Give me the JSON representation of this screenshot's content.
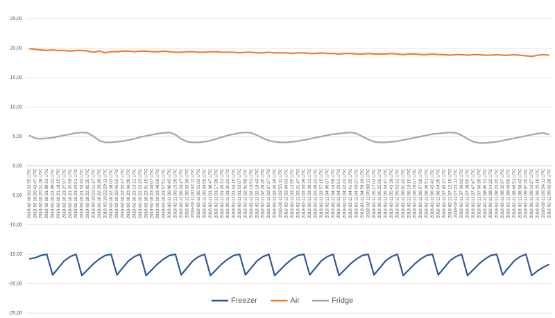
{
  "chart_data": {
    "type": "line",
    "categories": [
      "2018-02-10 20:33:55 UTC",
      "2018-02-10 20:42:47 UTC",
      "2018-02-10 20:51:39 UTC",
      "2018-02-10 21:00:31 UTC",
      "2018-02-10 21:09:23 UTC",
      "2018-02-10 21:18:15 UTC",
      "2018-02-10 21:27:07 UTC",
      "2018-02-10 21:35:59 UTC",
      "2018-02-10 21:44:51 UTC",
      "2018-02-10 21:53:43 UTC",
      "2018-02-10 22:02:35 UTC",
      "2018-02-10 22:11:27 UTC",
      "2018-02-10 22:20:19 UTC",
      "2018-02-10 22:29:11 UTC",
      "2018-02-10 22:38:03 UTC",
      "2018-02-10 22:46:55 UTC",
      "2018-02-10 22:55:47 UTC",
      "2018-02-10 23:04:39 UTC",
      "2018-02-10 23:13:31 UTC",
      "2018-02-10 23:22:23 UTC",
      "2018-02-10 23:31:15 UTC",
      "2018-02-10 23:40:07 UTC",
      "2018-02-10 23:48:59 UTC",
      "2018-02-10 23:57:51 UTC",
      "2018-02-11 00:06:43 UTC",
      "2018-02-11 00:15:35 UTC",
      "2018-02-11 00:24:27 UTC",
      "2018-02-11 00:33:19 UTC",
      "2018-02-11 00:42:11 UTC",
      "2018-02-11 00:51:03 UTC",
      "2018-02-11 00:59:55 UTC",
      "2018-02-11 01:08:47 UTC",
      "2018-02-11 01:17:39 UTC",
      "2018-02-11 01:26:31 UTC",
      "2018-02-11 01:35:23 UTC",
      "2018-02-11 01:44:15 UTC",
      "2018-02-11 01:53:07 UTC",
      "2018-02-11 02:01:59 UTC",
      "2018-02-11 02:10:51 UTC",
      "2018-02-11 02:19:43 UTC",
      "2018-02-11 02:28:35 UTC",
      "2018-02-11 02:37:27 UTC",
      "2018-02-11 02:46:19 UTC",
      "2018-02-11 02:55:11 UTC",
      "2018-02-11 03:04:03 UTC",
      "2018-02-11 03:12:55 UTC",
      "2018-02-11 03:21:47 UTC",
      "2018-02-11 03:30:39 UTC",
      "2018-02-11 03:39:31 UTC",
      "2018-02-11 03:48:23 UTC",
      "2018-02-11 03:57:15 UTC",
      "2018-02-11 04:06:07 UTC",
      "2018-02-11 04:14:59 UTC",
      "2018-02-11 04:23:51 UTC",
      "2018-02-11 04:32:43 UTC",
      "2018-02-11 04:41:35 UTC",
      "2018-02-11 04:50:27 UTC",
      "2018-02-11 04:59:19 UTC",
      "2018-02-11 05:08:11 UTC",
      "2018-02-11 05:17:03 UTC",
      "2018-02-11 05:25:55 UTC",
      "2018-02-11 05:34:47 UTC",
      "2018-02-11 05:43:39 UTC",
      "2018-02-11 05:52:31 UTC",
      "2018-02-11 06:01:23 UTC",
      "2018-02-11 06:10:15 UTC",
      "2018-02-11 06:19:07 UTC",
      "2018-02-11 06:27:59 UTC",
      "2018-02-11 06:36:51 UTC",
      "2018-02-11 06:45:43 UTC",
      "2018-02-11 06:54:35 UTC",
      "2018-02-11 07:03:27 UTC",
      "2018-02-11 07:12:19 UTC",
      "2018-02-11 07:21:11 UTC",
      "2018-02-11 07:30:03 UTC",
      "2018-02-11 07:38:55 UTC",
      "2018-02-11 07:47:47 UTC",
      "2018-02-11 07:56:39 UTC",
      "2018-02-11 08:05:31 UTC",
      "2018-02-11 08:14:23 UTC",
      "2018-02-11 08:23:15 UTC",
      "2018-02-11 08:32:07 UTC",
      "2018-02-11 08:40:59 UTC",
      "2018-02-11 08:49:51 UTC",
      "2018-02-11 08:58:43 UTC",
      "2018-02-11 09:07:35 UTC",
      "2018-02-11 09:16:27 UTC",
      "2018-02-11 09:25:19 UTC",
      "2018-02-11 09:34:11 UTC",
      "2018-02-11 09:42:28 UTC"
    ],
    "series": [
      {
        "name": "Freezer",
        "color": "#2f5597",
        "values": [
          -15.8,
          -15.6,
          -15.2,
          -15.0,
          -18.5,
          -17.3,
          -16.1,
          -15.4,
          -15.0,
          -18.6,
          -17.6,
          -16.6,
          -15.8,
          -15.2,
          -15.0,
          -18.5,
          -17.3,
          -16.1,
          -15.4,
          -15.0,
          -18.6,
          -17.6,
          -16.6,
          -15.8,
          -15.2,
          -15.0,
          -18.5,
          -17.3,
          -16.1,
          -15.4,
          -15.0,
          -18.6,
          -17.6,
          -16.6,
          -15.8,
          -15.2,
          -15.0,
          -18.5,
          -17.3,
          -16.1,
          -15.4,
          -15.0,
          -18.6,
          -17.6,
          -16.6,
          -15.8,
          -15.2,
          -15.0,
          -18.5,
          -17.3,
          -16.1,
          -15.4,
          -15.0,
          -18.6,
          -17.6,
          -16.6,
          -15.8,
          -15.2,
          -15.0,
          -18.5,
          -17.3,
          -16.1,
          -15.4,
          -15.0,
          -18.6,
          -17.6,
          -16.6,
          -15.8,
          -15.2,
          -15.0,
          -18.5,
          -17.3,
          -16.1,
          -15.4,
          -15.0,
          -18.6,
          -17.6,
          -16.6,
          -15.8,
          -15.2,
          -15.0,
          -18.5,
          -17.3,
          -16.1,
          -15.4,
          -15.0,
          -18.6,
          -17.8,
          -17.2,
          -16.7
        ]
      },
      {
        "name": "Air",
        "color": "#ed7d31",
        "values": [
          19.9,
          19.8,
          19.7,
          19.6,
          19.7,
          19.6,
          19.6,
          19.5,
          19.6,
          19.6,
          19.5,
          19.3,
          19.5,
          19.2,
          19.4,
          19.4,
          19.5,
          19.5,
          19.4,
          19.5,
          19.5,
          19.4,
          19.4,
          19.5,
          19.4,
          19.3,
          19.3,
          19.4,
          19.4,
          19.3,
          19.3,
          19.4,
          19.4,
          19.3,
          19.3,
          19.3,
          19.2,
          19.3,
          19.3,
          19.2,
          19.2,
          19.3,
          19.2,
          19.2,
          19.2,
          19.1,
          19.2,
          19.2,
          19.1,
          19.1,
          19.2,
          19.1,
          19.1,
          19.0,
          19.1,
          19.1,
          19.0,
          19.0,
          19.1,
          19.0,
          19.0,
          19.0,
          19.1,
          19.0,
          18.9,
          19.0,
          19.0,
          18.9,
          18.9,
          19.0,
          18.9,
          18.9,
          18.8,
          18.9,
          18.9,
          18.8,
          18.9,
          18.9,
          18.8,
          18.8,
          18.9,
          18.8,
          18.8,
          18.9,
          18.8,
          18.7,
          18.6,
          18.8,
          18.9,
          18.8
        ]
      },
      {
        "name": "Fridge",
        "color": "#a5a5a5",
        "values": [
          5.2,
          4.7,
          4.6,
          4.7,
          4.8,
          5.0,
          5.2,
          5.4,
          5.6,
          5.7,
          5.6,
          5.0,
          4.3,
          4.0,
          4.0,
          4.1,
          4.2,
          4.4,
          4.6,
          4.9,
          5.1,
          5.3,
          5.5,
          5.6,
          5.7,
          5.3,
          4.6,
          4.1,
          4.0,
          4.0,
          4.1,
          4.3,
          4.6,
          4.9,
          5.2,
          5.4,
          5.6,
          5.7,
          5.6,
          5.2,
          4.7,
          4.3,
          4.1,
          4.0,
          4.0,
          4.1,
          4.2,
          4.4,
          4.6,
          4.8,
          5.0,
          5.2,
          5.4,
          5.5,
          5.6,
          5.7,
          5.5,
          5.0,
          4.5,
          4.1,
          4.0,
          4.0,
          4.1,
          4.2,
          4.4,
          4.6,
          4.8,
          5.0,
          5.2,
          5.4,
          5.5,
          5.6,
          5.7,
          5.6,
          5.2,
          4.6,
          4.1,
          3.9,
          3.9,
          4.0,
          4.1,
          4.3,
          4.5,
          4.7,
          4.9,
          5.1,
          5.3,
          5.5,
          5.6,
          5.3
        ]
      }
    ],
    "ylim": [
      -25,
      25
    ],
    "yticks": [
      {
        "value": -25,
        "label": "-25,00"
      },
      {
        "value": -20,
        "label": "-20,00"
      },
      {
        "value": -15,
        "label": "-15,00"
      },
      {
        "value": -10,
        "label": "-10,00"
      },
      {
        "value": -5,
        "label": "-5,00"
      },
      {
        "value": 0,
        "label": "0,00"
      },
      {
        "value": 5,
        "label": "5,00"
      },
      {
        "value": 10,
        "label": "10,00"
      },
      {
        "value": 15,
        "label": "15,00"
      },
      {
        "value": 20,
        "label": "20,00"
      },
      {
        "value": 25,
        "label": "25,00"
      }
    ],
    "grid": true,
    "legend": "bottom"
  }
}
